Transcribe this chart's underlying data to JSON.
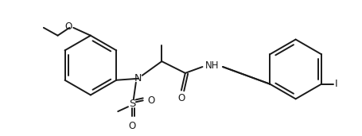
{
  "bg_color": "#ffffff",
  "line_color": "#1a1a1a",
  "bond_width": 1.4,
  "figsize": [
    4.56,
    1.71
  ],
  "dpi": 100,
  "xlim": [
    0,
    456
  ],
  "ylim": [
    0,
    171
  ]
}
